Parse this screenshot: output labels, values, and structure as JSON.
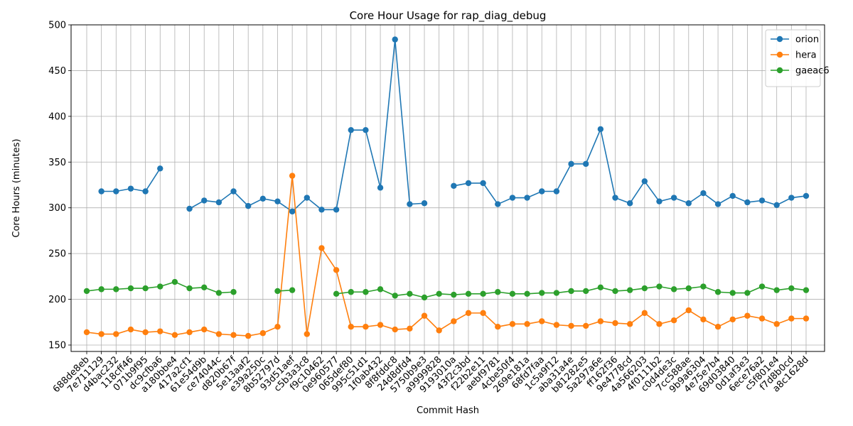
{
  "chart_data": {
    "type": "line",
    "title": "Core Hour Usage for rap_diag_debug",
    "xlabel": "Commit Hash",
    "ylabel": "Core Hours (minutes)",
    "ylim": [
      143,
      500
    ],
    "yticks": [
      150,
      200,
      250,
      300,
      350,
      400,
      450,
      500
    ],
    "grid": true,
    "legend_position": "top-right",
    "categories": [
      "688de8eb",
      "7e711129",
      "d4bac232",
      "118cff46",
      "071b9f95",
      "dc9cfba6",
      "a180bbe4",
      "417a2cf1",
      "61e54d9b",
      "ce74044c",
      "d820b67f",
      "5e13aaf2",
      "e39a250c",
      "8b52797d",
      "93d51aef",
      "c5b3a3c8",
      "f9c10462",
      "0e960577",
      "065def80",
      "995c51d1",
      "1f0ab432",
      "8f8fddc8",
      "24d8dfd4",
      "5750b9e3",
      "a9999828",
      "9193010a",
      "43f2c3bd",
      "f22b2e11",
      "aebf9781",
      "4cbe50f4",
      "269e181a",
      "68fd7faa",
      "1c5a9f12",
      "aba31a4e",
      "b81282e5",
      "5a297a6e",
      "ff162f36",
      "9e4778cd",
      "4a566203",
      "4f0111b2",
      "c0d4de3c",
      "7cc588ae",
      "9b9a6304",
      "4e75e7b4",
      "69d03840",
      "0d1af3e3",
      "6ece76a2",
      "c5f801e4",
      "f7d8b0cd",
      "a8c1628d"
    ],
    "series": [
      {
        "name": "orion",
        "color": "#1f77b4",
        "values": [
          null,
          318,
          318,
          321,
          318,
          343,
          null,
          299,
          308,
          306,
          318,
          302,
          310,
          307,
          296,
          311,
          298,
          298,
          385,
          385,
          322,
          484,
          304,
          305,
          null,
          324,
          327,
          327,
          304,
          311,
          311,
          318,
          318,
          348,
          348,
          386,
          311,
          305,
          329,
          307,
          311,
          305,
          316,
          304,
          313,
          306,
          308,
          303,
          311,
          313
        ]
      },
      {
        "name": "hera",
        "color": "#ff7f0e",
        "values": [
          164,
          162,
          162,
          167,
          164,
          165,
          161,
          164,
          167,
          162,
          161,
          160,
          163,
          170,
          335,
          162,
          256,
          232,
          170,
          170,
          172,
          167,
          168,
          182,
          166,
          176,
          185,
          185,
          170,
          173,
          173,
          176,
          172,
          171,
          171,
          176,
          174,
          173,
          185,
          173,
          177,
          188,
          178,
          170,
          178,
          182,
          179,
          173,
          179,
          179
        ]
      },
      {
        "name": "gaeac6",
        "color": "#2ca02c",
        "values": [
          209,
          211,
          211,
          212,
          212,
          214,
          219,
          212,
          213,
          207,
          208,
          null,
          null,
          209,
          210,
          null,
          null,
          206,
          208,
          208,
          211,
          204,
          206,
          202,
          206,
          205,
          206,
          206,
          208,
          206,
          206,
          207,
          207,
          209,
          209,
          213,
          209,
          210,
          212,
          214,
          211,
          212,
          214,
          208,
          207,
          207,
          214,
          210,
          212,
          210
        ]
      }
    ]
  }
}
